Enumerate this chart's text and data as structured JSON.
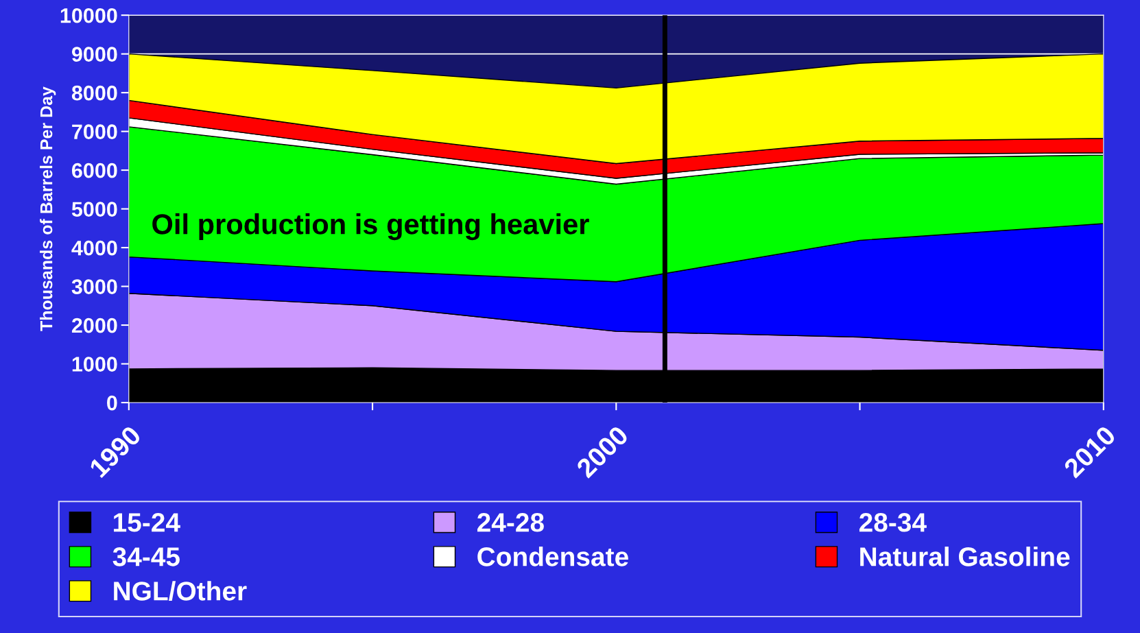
{
  "chart_data": {
    "type": "area",
    "stacked": true,
    "ylabel": "Thousands of Barrels Per Day",
    "x": [
      1990,
      1995,
      2000,
      2005,
      2010
    ],
    "series": [
      {
        "name": "15-24",
        "color": "#000000",
        "values": [
          870,
          900,
          830,
          830,
          870
        ]
      },
      {
        "name": "24-28",
        "color": "#cc99ff",
        "values": [
          1950,
          1600,
          1010,
          860,
          480
        ]
      },
      {
        "name": "28-34",
        "color": "#0000ff",
        "values": [
          940,
          900,
          1280,
          2500,
          3270
        ]
      },
      {
        "name": "34-45",
        "color": "#00ff00",
        "values": [
          3360,
          3000,
          2520,
          2110,
          1770
        ]
      },
      {
        "name": "Condensate",
        "color": "#ffffff",
        "values": [
          230,
          140,
          150,
          110,
          60
        ]
      },
      {
        "name": "Natural Gasoline",
        "color": "#ff0000",
        "values": [
          450,
          380,
          380,
          340,
          370
        ]
      },
      {
        "name": "NGL/Other",
        "color": "#ffff00",
        "values": [
          1200,
          1650,
          1950,
          2010,
          2180
        ]
      }
    ],
    "xlim": [
      1990,
      2010
    ],
    "xticks": [
      1990,
      {
        "value": 1995,
        "label": null
      },
      2000,
      {
        "value": 2005,
        "label": null
      },
      2010
    ],
    "ylim": [
      0,
      10000
    ],
    "yticks": [
      0,
      1000,
      2000,
      3000,
      4000,
      5000,
      6000,
      7000,
      8000,
      9000,
      10000
    ],
    "grid": "y",
    "legend": "bottom",
    "bands": [
      {
        "axis": "x",
        "from": 1990,
        "to": 2010,
        "color": "#15156a"
      }
    ],
    "ref_lines": [
      {
        "axis": "x",
        "value": 2001,
        "color": "#000000"
      }
    ],
    "annotations": [
      "Oil production is getting heavier"
    ]
  }
}
